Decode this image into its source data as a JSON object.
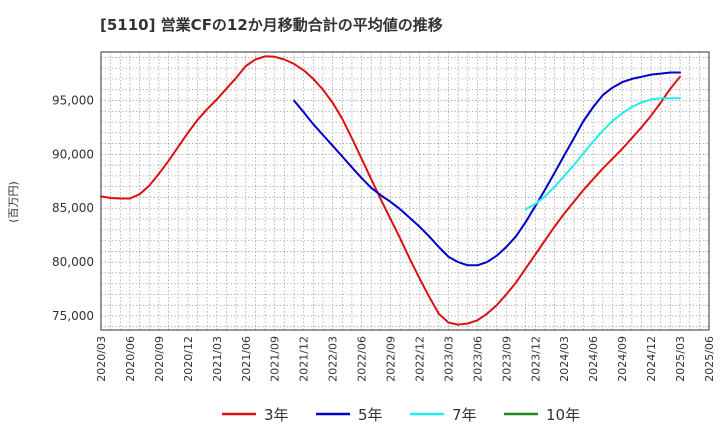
{
  "chart_data": {
    "type": "line",
    "title": "[5110]  営業CFの12か月移動合計の平均値の推移",
    "ylabel": "(百万円)",
    "xlabel": "",
    "ylim": [
      73700,
      99500
    ],
    "yticks": [
      75000,
      80000,
      85000,
      90000,
      95000
    ],
    "ytick_labels": [
      "75,000",
      "80,000",
      "85,000",
      "90,000",
      "95,000"
    ],
    "xticks": [
      "2020/03",
      "2020/06",
      "2020/09",
      "2020/12",
      "2021/03",
      "2021/06",
      "2021/09",
      "2021/12",
      "2022/03",
      "2022/06",
      "2022/09",
      "2022/12",
      "2023/03",
      "2023/06",
      "2023/09",
      "2023/12",
      "2024/03",
      "2024/06",
      "2024/09",
      "2024/12",
      "2025/03",
      "2025/06"
    ],
    "grid": true,
    "legend_position": "bottom",
    "series": [
      {
        "name": "3年",
        "color": "#dd1111",
        "points": [
          [
            "2020/03",
            86100
          ],
          [
            "2020/04",
            85950
          ],
          [
            "2020/05",
            85900
          ],
          [
            "2020/06",
            85900
          ],
          [
            "2020/07",
            86300
          ],
          [
            "2020/08",
            87100
          ],
          [
            "2020/09",
            88200
          ],
          [
            "2020/10",
            89400
          ],
          [
            "2020/11",
            90700
          ],
          [
            "2020/12",
            92000
          ],
          [
            "2021/01",
            93200
          ],
          [
            "2021/02",
            94200
          ],
          [
            "2021/03",
            95100
          ],
          [
            "2021/04",
            96100
          ],
          [
            "2021/05",
            97100
          ],
          [
            "2021/06",
            98200
          ],
          [
            "2021/07",
            98800
          ],
          [
            "2021/08",
            99100
          ],
          [
            "2021/09",
            99050
          ],
          [
            "2021/10",
            98800
          ],
          [
            "2021/11",
            98400
          ],
          [
            "2021/12",
            97800
          ],
          [
            "2022/01",
            97000
          ],
          [
            "2022/02",
            96000
          ],
          [
            "2022/03",
            94800
          ],
          [
            "2022/04",
            93300
          ],
          [
            "2022/05",
            91500
          ],
          [
            "2022/06",
            89600
          ],
          [
            "2022/07",
            87700
          ],
          [
            "2022/08",
            85800
          ],
          [
            "2022/09",
            84000
          ],
          [
            "2022/10",
            82200
          ],
          [
            "2022/11",
            80300
          ],
          [
            "2022/12",
            78500
          ],
          [
            "2023/01",
            76800
          ],
          [
            "2023/02",
            75200
          ],
          [
            "2023/03",
            74400
          ],
          [
            "2023/04",
            74200
          ],
          [
            "2023/05",
            74300
          ],
          [
            "2023/06",
            74600
          ],
          [
            "2023/07",
            75200
          ],
          [
            "2023/08",
            76000
          ],
          [
            "2023/09",
            77000
          ],
          [
            "2023/10",
            78100
          ],
          [
            "2023/11",
            79400
          ],
          [
            "2023/12",
            80700
          ],
          [
            "2024/01",
            82000
          ],
          [
            "2024/02",
            83300
          ],
          [
            "2024/03",
            84500
          ],
          [
            "2024/04",
            85600
          ],
          [
            "2024/05",
            86700
          ],
          [
            "2024/06",
            87700
          ],
          [
            "2024/07",
            88700
          ],
          [
            "2024/08",
            89600
          ],
          [
            "2024/09",
            90500
          ],
          [
            "2024/10",
            91500
          ],
          [
            "2024/11",
            92500
          ],
          [
            "2024/12",
            93600
          ],
          [
            "2025/01",
            94800
          ],
          [
            "2025/02",
            96100
          ],
          [
            "2025/03",
            97200
          ]
        ]
      },
      {
        "name": "5年",
        "color": "#0000cc",
        "points": [
          [
            "2021/11",
            95000
          ],
          [
            "2021/12",
            93900
          ],
          [
            "2022/01",
            92800
          ],
          [
            "2022/02",
            91800
          ],
          [
            "2022/03",
            90800
          ],
          [
            "2022/04",
            89800
          ],
          [
            "2022/05",
            88800
          ],
          [
            "2022/06",
            87800
          ],
          [
            "2022/07",
            86900
          ],
          [
            "2022/08",
            86200
          ],
          [
            "2022/09",
            85600
          ],
          [
            "2022/10",
            84900
          ],
          [
            "2022/11",
            84100
          ],
          [
            "2022/12",
            83300
          ],
          [
            "2023/01",
            82400
          ],
          [
            "2023/02",
            81400
          ],
          [
            "2023/03",
            80500
          ],
          [
            "2023/04",
            80000
          ],
          [
            "2023/05",
            79700
          ],
          [
            "2023/06",
            79700
          ],
          [
            "2023/07",
            80000
          ],
          [
            "2023/08",
            80600
          ],
          [
            "2023/09",
            81400
          ],
          [
            "2023/10",
            82400
          ],
          [
            "2023/11",
            83700
          ],
          [
            "2023/12",
            85200
          ],
          [
            "2024/01",
            86700
          ],
          [
            "2024/02",
            88300
          ],
          [
            "2024/03",
            89900
          ],
          [
            "2024/04",
            91500
          ],
          [
            "2024/05",
            93100
          ],
          [
            "2024/06",
            94400
          ],
          [
            "2024/07",
            95500
          ],
          [
            "2024/08",
            96200
          ],
          [
            "2024/09",
            96700
          ],
          [
            "2024/10",
            97000
          ],
          [
            "2024/11",
            97200
          ],
          [
            "2024/12",
            97400
          ],
          [
            "2025/01",
            97500
          ],
          [
            "2025/02",
            97600
          ],
          [
            "2025/03",
            97600
          ]
        ]
      },
      {
        "name": "7年",
        "color": "#22eeee",
        "points": [
          [
            "2023/11",
            84900
          ],
          [
            "2023/12",
            85400
          ],
          [
            "2024/01",
            86100
          ],
          [
            "2024/02",
            87000
          ],
          [
            "2024/03",
            88000
          ],
          [
            "2024/04",
            89000
          ],
          [
            "2024/05",
            90100
          ],
          [
            "2024/06",
            91200
          ],
          [
            "2024/07",
            92200
          ],
          [
            "2024/08",
            93100
          ],
          [
            "2024/09",
            93800
          ],
          [
            "2024/10",
            94400
          ],
          [
            "2024/11",
            94800
          ],
          [
            "2024/12",
            95100
          ],
          [
            "2025/01",
            95200
          ],
          [
            "2025/02",
            95200
          ],
          [
            "2025/03",
            95200
          ]
        ]
      },
      {
        "name": "10年",
        "color": "#228822",
        "points": []
      }
    ]
  }
}
